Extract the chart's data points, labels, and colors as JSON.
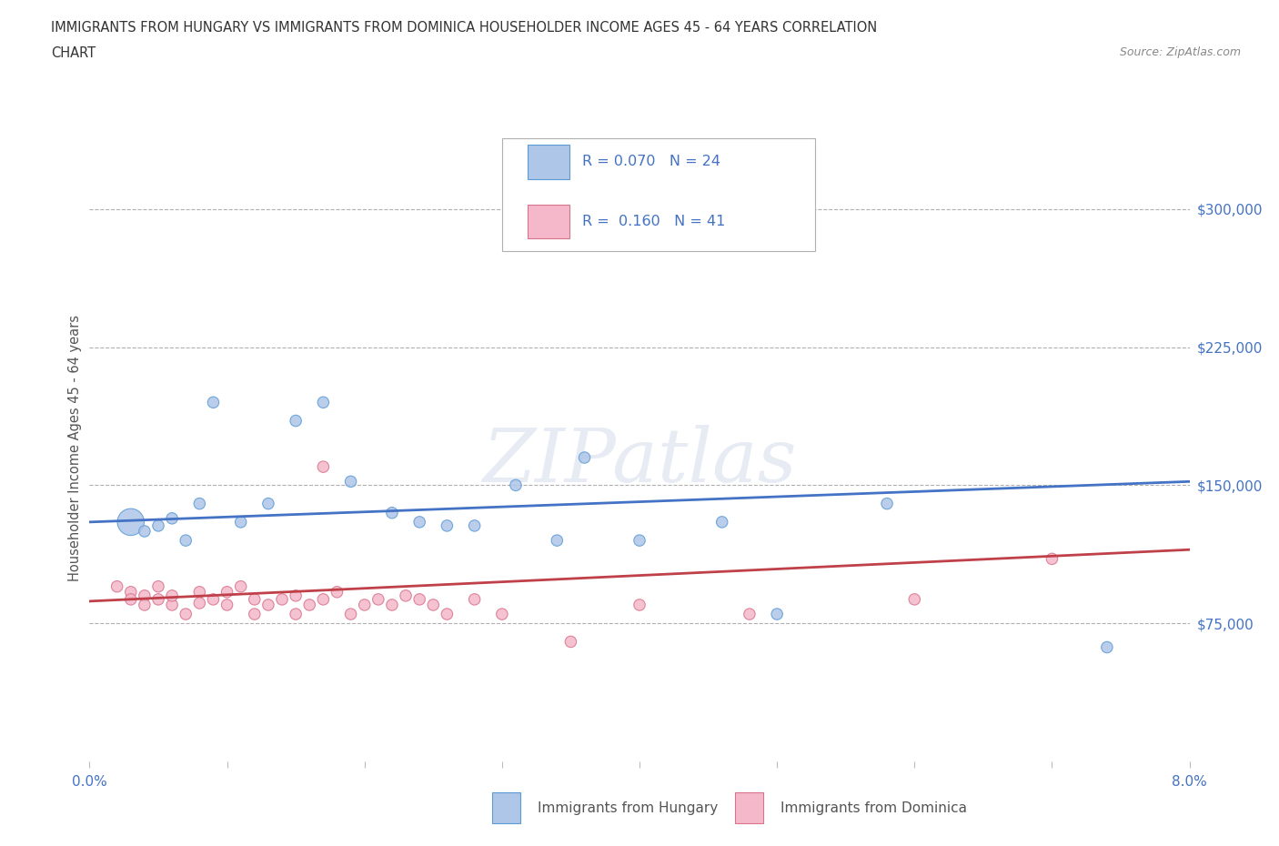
{
  "title_line1": "IMMIGRANTS FROM HUNGARY VS IMMIGRANTS FROM DOMINICA HOUSEHOLDER INCOME AGES 45 - 64 YEARS CORRELATION",
  "title_line2": "CHART",
  "source_text": "Source: ZipAtlas.com",
  "ylabel": "Householder Income Ages 45 - 64 years",
  "xlim": [
    0.0,
    0.08
  ],
  "ylim": [
    0,
    340000
  ],
  "yticks": [
    75000,
    150000,
    225000,
    300000
  ],
  "ytick_labels": [
    "$75,000",
    "$150,000",
    "$225,000",
    "$300,000"
  ],
  "xticks": [
    0.0,
    0.01,
    0.02,
    0.03,
    0.04,
    0.05,
    0.06,
    0.07,
    0.08
  ],
  "xtick_labels": [
    "0.0%",
    "",
    "",
    "",
    "",
    "",
    "",
    "",
    "8.0%"
  ],
  "hungary_color": "#aec6e8",
  "hungary_edge_color": "#5b9bd5",
  "dominica_color": "#f4b8ca",
  "dominica_edge_color": "#d9738a",
  "hungary_line_color": "#4472c4",
  "dominica_line_color": "#c0404a",
  "R_hungary": 0.07,
  "N_hungary": 24,
  "R_dominica": 0.16,
  "N_dominica": 41,
  "watermark": "ZIPatlas",
  "background_color": "#ffffff",
  "grid_color": "#b0b0b0",
  "hungary_x": [
    0.003,
    0.004,
    0.005,
    0.006,
    0.007,
    0.008,
    0.009,
    0.011,
    0.013,
    0.015,
    0.017,
    0.019,
    0.022,
    0.024,
    0.026,
    0.028,
    0.031,
    0.034,
    0.036,
    0.04,
    0.046,
    0.05,
    0.058,
    0.074
  ],
  "hungary_y": [
    130000,
    125000,
    128000,
    132000,
    120000,
    140000,
    195000,
    130000,
    140000,
    185000,
    195000,
    152000,
    135000,
    130000,
    128000,
    128000,
    150000,
    120000,
    165000,
    120000,
    130000,
    80000,
    140000,
    62000
  ],
  "hungary_size": [
    450,
    80,
    80,
    80,
    80,
    80,
    80,
    80,
    80,
    80,
    80,
    80,
    80,
    80,
    80,
    80,
    80,
    80,
    80,
    80,
    80,
    80,
    80,
    80
  ],
  "dominica_x": [
    0.002,
    0.003,
    0.003,
    0.004,
    0.004,
    0.005,
    0.005,
    0.006,
    0.006,
    0.007,
    0.008,
    0.008,
    0.009,
    0.01,
    0.01,
    0.011,
    0.012,
    0.012,
    0.013,
    0.014,
    0.015,
    0.015,
    0.016,
    0.017,
    0.017,
    0.018,
    0.019,
    0.02,
    0.021,
    0.022,
    0.023,
    0.024,
    0.025,
    0.026,
    0.028,
    0.03,
    0.035,
    0.04,
    0.048,
    0.06,
    0.07
  ],
  "dominica_y": [
    95000,
    92000,
    88000,
    90000,
    85000,
    95000,
    88000,
    85000,
    90000,
    80000,
    92000,
    86000,
    88000,
    92000,
    85000,
    95000,
    88000,
    80000,
    85000,
    88000,
    90000,
    80000,
    85000,
    160000,
    88000,
    92000,
    80000,
    85000,
    88000,
    85000,
    90000,
    88000,
    85000,
    80000,
    88000,
    80000,
    65000,
    85000,
    80000,
    88000,
    110000
  ],
  "dominica_size": [
    80,
    80,
    80,
    80,
    80,
    80,
    80,
    80,
    80,
    80,
    80,
    80,
    80,
    80,
    80,
    80,
    80,
    80,
    80,
    80,
    80,
    80,
    80,
    80,
    80,
    80,
    80,
    80,
    80,
    80,
    80,
    80,
    80,
    80,
    80,
    80,
    80,
    80,
    80,
    80,
    80
  ],
  "hungary_trend_x": [
    0.0,
    0.08
  ],
  "hungary_trend_y": [
    130000,
    152000
  ],
  "dominica_trend_x": [
    0.0,
    0.08
  ],
  "dominica_trend_y": [
    87000,
    115000
  ]
}
